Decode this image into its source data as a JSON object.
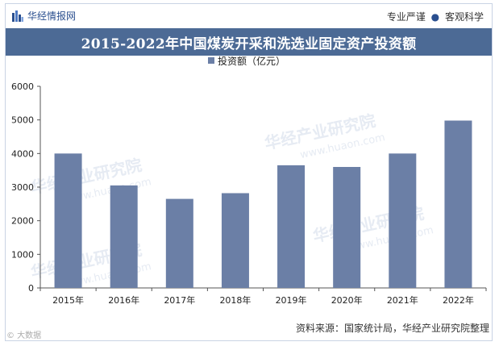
{
  "brand": {
    "name": "华经情报网",
    "tagline_left": "专业严谨",
    "tagline_sep": "●",
    "tagline_right": "客观科学"
  },
  "chart_data": {
    "type": "bar",
    "title": "2015-2022年中国煤炭开采和洗选业固定资产投资额",
    "categories": [
      "2015年",
      "2016年",
      "2017年",
      "2018年",
      "2019年",
      "2020年",
      "2021年",
      "2022年"
    ],
    "series": [
      {
        "name": "投资额（亿元）",
        "values": [
          4000,
          3050,
          2650,
          2820,
          3650,
          3600,
          4000,
          4980
        ]
      }
    ],
    "ylim": [
      0,
      6000
    ],
    "yticks": [
      0,
      1000,
      2000,
      3000,
      4000,
      5000,
      6000
    ],
    "xlabel": "",
    "ylabel": "",
    "legend": "top-center",
    "bar_color": "#6b7fa6"
  },
  "watermark": {
    "text": "华经产业研究院",
    "url": "www.huaon.com"
  },
  "footer": {
    "source": "资料来源：国家统计局，华经产业研究院整理",
    "corner_mark": "© 大数据"
  }
}
